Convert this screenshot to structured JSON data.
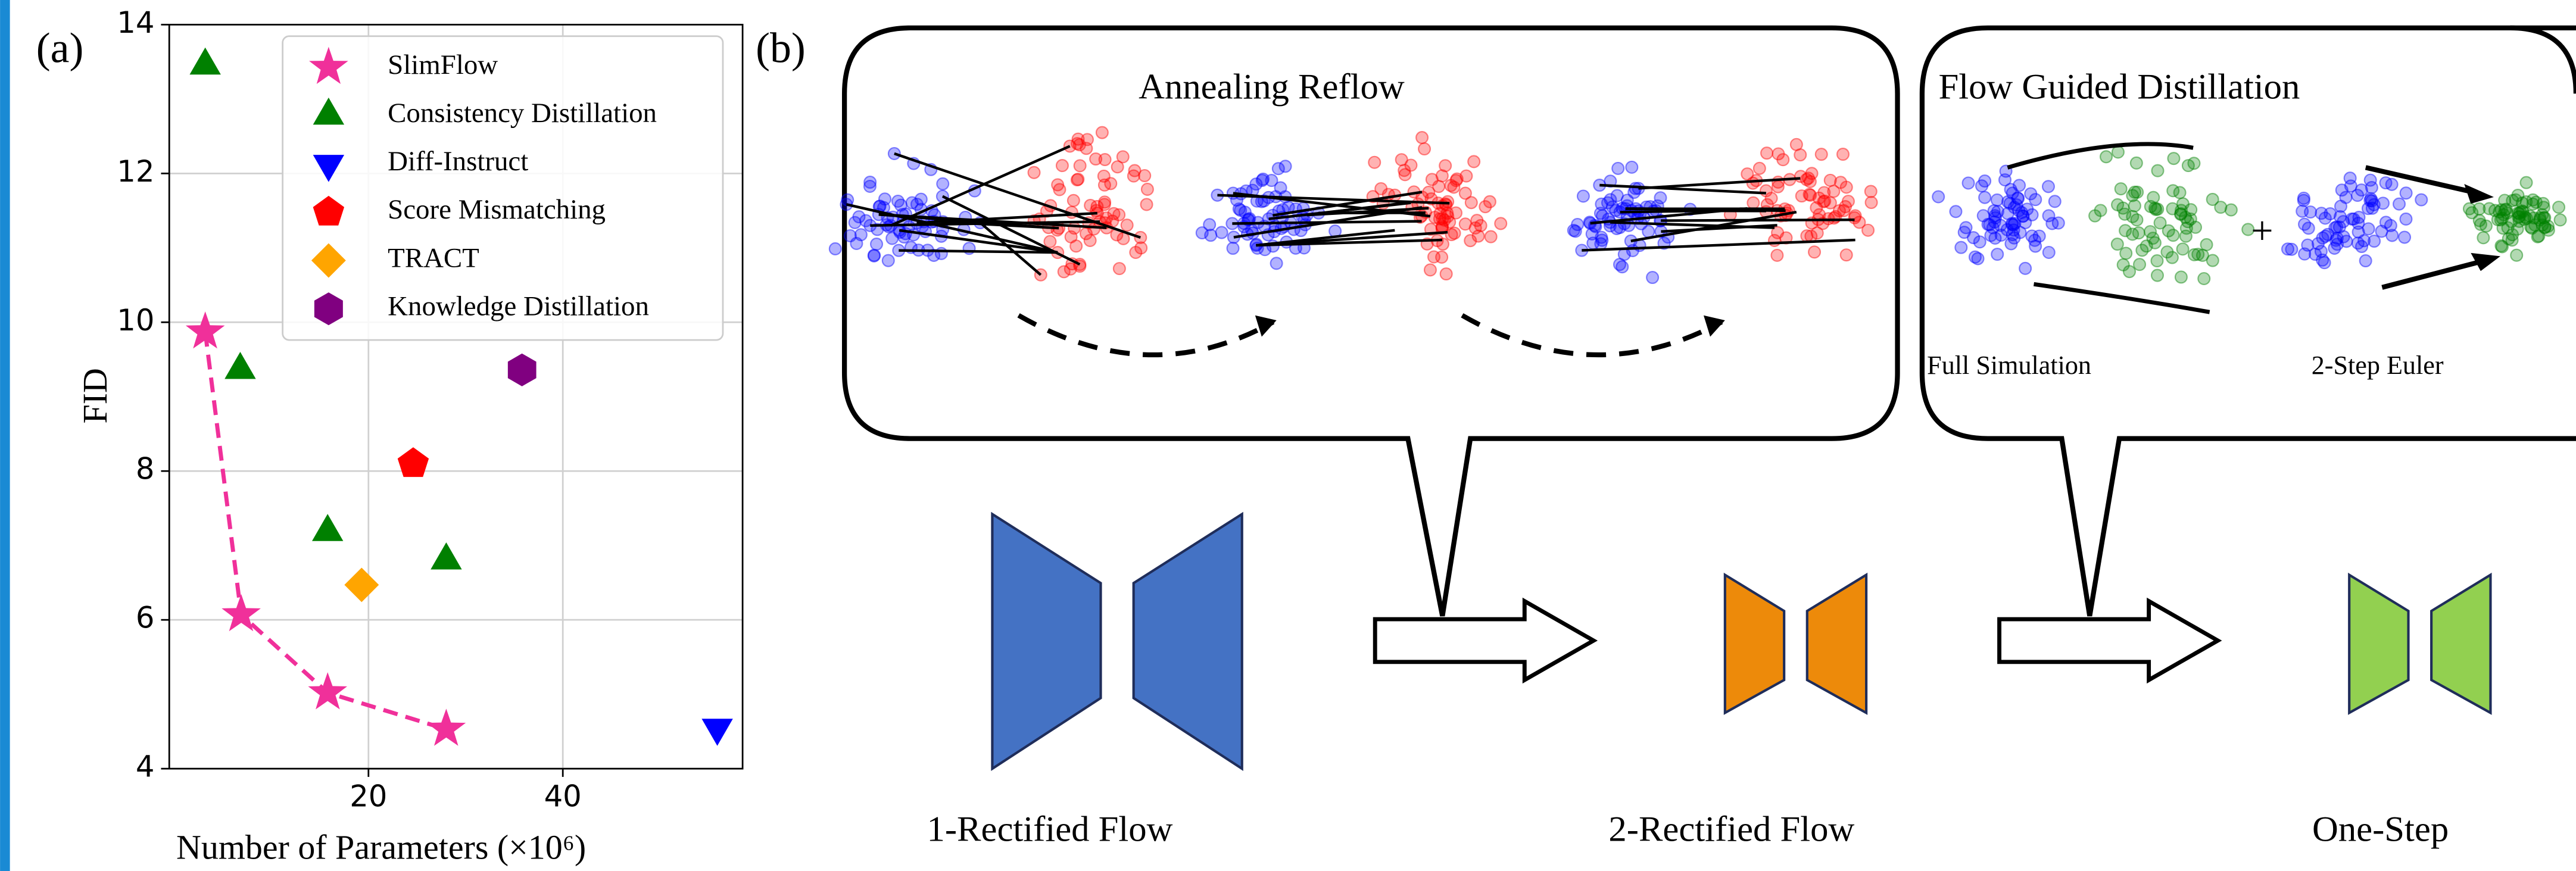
{
  "chart_data": {
    "type": "scatter",
    "panel_label": "(a)",
    "xlabel": "Number of Parameters (×10⁶)",
    "ylabel": "FID",
    "xlim": [
      -0.5,
      58.5
    ],
    "ylim": [
      4,
      14
    ],
    "xticks": [
      20,
      40
    ],
    "yticks": [
      4,
      6,
      8,
      10,
      12,
      14
    ],
    "grid": true,
    "legend": "upper right",
    "series": [
      {
        "name": "SlimFlow",
        "color": "#f0309a",
        "marker": "star",
        "linestyle": "dashed",
        "x": [
          3.2,
          6.9,
          15.8,
          28
        ],
        "values": [
          9.87,
          6.07,
          5.02,
          4.53
        ]
      },
      {
        "name": "Consistency Distillation",
        "color": "#008000",
        "marker": "triangle-up",
        "x": [
          3.2,
          6.8,
          15.8,
          28
        ],
        "values": [
          13.45,
          9.36,
          7.18,
          6.8
        ]
      },
      {
        "name": "Diff-Instruct",
        "color": "#0000ff",
        "marker": "triangle-down",
        "x": [
          55.9
        ],
        "values": [
          4.55
        ]
      },
      {
        "name": "Score Mismatching",
        "color": "#ff0000",
        "marker": "pentagon",
        "x": [
          24.6
        ],
        "values": [
          8.1
        ]
      },
      {
        "name": "TRACT",
        "color": "#ffa500",
        "marker": "diamond",
        "x": [
          19.3
        ],
        "values": [
          6.47
        ]
      },
      {
        "name": "Knowledge Distillation",
        "color": "#800080",
        "marker": "hexagon",
        "x": [
          35.8
        ],
        "values": [
          9.36
        ]
      }
    ]
  },
  "diagram": {
    "panel_label": "(b)",
    "annealing_title": "Annealing Reflow",
    "distillation_title": "Flow Guided Distillation",
    "full_simulation": "Full Simulation",
    "two_step_euler": "2-Step Euler",
    "plus": "+",
    "stages": [
      "1-Rectified Flow",
      "2-Rectified Flow",
      "One-Step"
    ]
  }
}
